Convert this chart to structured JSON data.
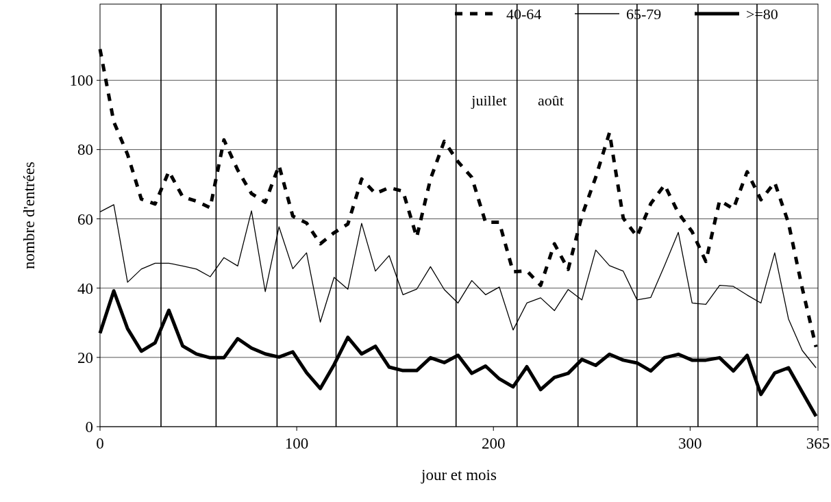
{
  "chart_data": {
    "type": "line",
    "xlabel": "jour et mois",
    "ylabel": "nombre d'entrées",
    "x": [
      0,
      7,
      14,
      21,
      28,
      35,
      42,
      49,
      56,
      63,
      70,
      77,
      84,
      91,
      98,
      105,
      112,
      119,
      126,
      133,
      140,
      147,
      154,
      161,
      168,
      175,
      182,
      189,
      196,
      203,
      210,
      217,
      224,
      231,
      238,
      245,
      252,
      259,
      266,
      273,
      280,
      287,
      294,
      301,
      308,
      315,
      322,
      329,
      336,
      343,
      350,
      357,
      364
    ],
    "series": [
      {
        "name": "40-64",
        "color": "#000000",
        "line_style": "dashed",
        "values": [
          109,
          88,
          78.6,
          65.7,
          64.3,
          73.7,
          66.4,
          65.1,
          63.2,
          82.8,
          74.1,
          67.3,
          64.8,
          75.4,
          60.8,
          58.8,
          52.8,
          56,
          58.5,
          71.5,
          67.3,
          69,
          68,
          54.7,
          71.5,
          82.4,
          76.5,
          72,
          59,
          59,
          44.7,
          45,
          40.8,
          52.8,
          45.4,
          60.9,
          72,
          84.9,
          60.2,
          54.9,
          64.4,
          69.8,
          61.7,
          56.3,
          47.7,
          65.3,
          62.9,
          73.6,
          65.5,
          70.5,
          58.8,
          40,
          23
        ]
      },
      {
        "name": "65-79",
        "color": "#000000",
        "line_style": "solid",
        "values": [
          62,
          64.1,
          41.7,
          45.5,
          47.2,
          47.2,
          46.4,
          45.5,
          43.3,
          48.8,
          46.4,
          62.3,
          39,
          57.7,
          45.6,
          50.2,
          30.2,
          43.1,
          39.7,
          58.7,
          44.9,
          49.4,
          38.1,
          39.7,
          46.2,
          39.6,
          35.7,
          42.2,
          38.1,
          40.3,
          27.9,
          35.7,
          37.2,
          33.5,
          39.6,
          36.6,
          51,
          46.5,
          44.9,
          36.6,
          37.3,
          46.5,
          56.1,
          35.7,
          35.3,
          40.8,
          40.5,
          38,
          35.7,
          50.2,
          31.1,
          22,
          17
        ]
      },
      {
        "name": ">=80",
        "color": "#000000",
        "line_style": "solid",
        "values": [
          27,
          39.2,
          28.3,
          21.8,
          24.2,
          33.6,
          23.3,
          21,
          19.9,
          19.9,
          25.4,
          22.7,
          21,
          20.1,
          21.6,
          15.6,
          11,
          17.9,
          25.8,
          21,
          23.2,
          17.2,
          16.2,
          16.2,
          19.9,
          18.5,
          20.6,
          15.4,
          17.5,
          13.8,
          11.5,
          17.3,
          10.7,
          14.2,
          15.4,
          19.4,
          17.7,
          20.9,
          19.2,
          18.4,
          16.1,
          19.9,
          20.9,
          19.2,
          19.2,
          19.9,
          16.1,
          20.6,
          9.3,
          15.5,
          17,
          10,
          3
        ]
      }
    ],
    "xlim": [
      0,
      365
    ],
    "xticks": [
      0,
      100,
      200,
      300,
      365
    ],
    "ylim": [
      0,
      122
    ],
    "yticks": [
      0,
      20,
      40,
      60,
      80,
      100
    ],
    "grid": "y",
    "legend": "top right",
    "marker": "none",
    "ref_lines": [
      {
        "axis": "x",
        "value": 31
      },
      {
        "axis": "x",
        "value": 59
      },
      {
        "axis": "x",
        "value": 90
      },
      {
        "axis": "x",
        "value": 120
      },
      {
        "axis": "x",
        "value": 151
      },
      {
        "axis": "x",
        "value": 181
      },
      {
        "axis": "x",
        "value": 212
      },
      {
        "axis": "x",
        "value": 243
      },
      {
        "axis": "x",
        "value": 273
      },
      {
        "axis": "x",
        "value": 304
      },
      {
        "axis": "x",
        "value": 334
      }
    ],
    "annotations": [
      "juillet",
      "août"
    ]
  }
}
